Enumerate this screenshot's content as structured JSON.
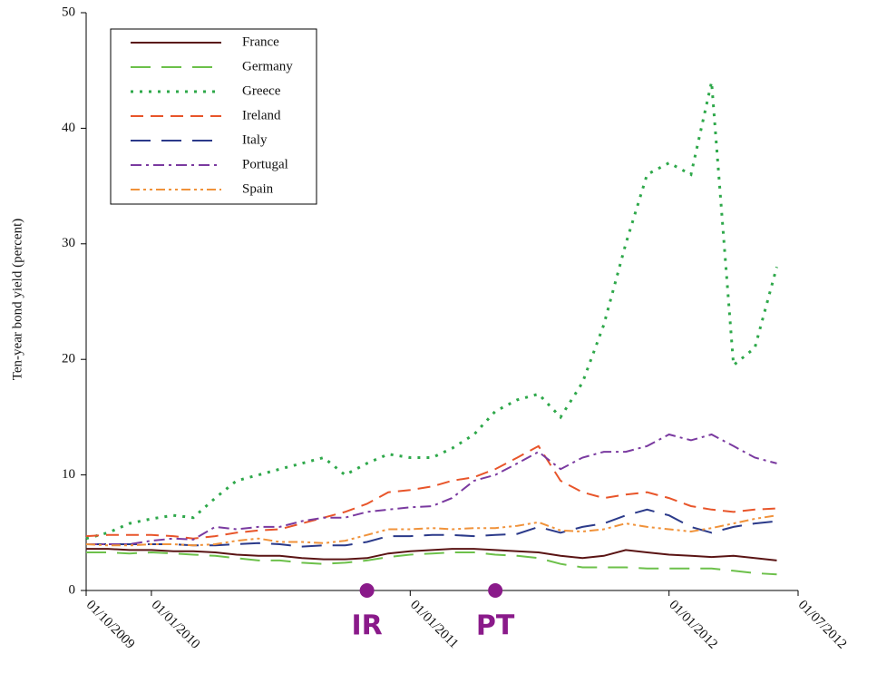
{
  "chart_data": {
    "type": "line",
    "y_label": "Ten-year bond yield (percent)",
    "x": [
      "2009-10-01",
      "2009-11-01",
      "2009-12-01",
      "2010-01-01",
      "2010-02-01",
      "2010-03-01",
      "2010-04-01",
      "2010-05-01",
      "2010-06-01",
      "2010-07-01",
      "2010-08-01",
      "2010-09-01",
      "2010-10-01",
      "2010-11-01",
      "2010-12-01",
      "2011-01-01",
      "2011-02-01",
      "2011-03-01",
      "2011-04-01",
      "2011-05-01",
      "2011-06-01",
      "2011-07-01",
      "2011-08-01",
      "2011-09-01",
      "2011-10-01",
      "2011-11-01",
      "2011-12-01",
      "2012-01-01",
      "2012-02-01",
      "2012-03-01",
      "2012-04-01",
      "2012-05-01",
      "2012-06-01"
    ],
    "xlim": [
      "2009-10-01",
      "2012-07-01"
    ],
    "xticks": [
      {
        "value": "2009-10-01",
        "label": "01/10/2009"
      },
      {
        "value": "2010-01-01",
        "label": "01/01/2010"
      },
      {
        "value": "2011-01-01",
        "label": "01/01/2011"
      },
      {
        "value": "2012-01-01",
        "label": "01/01/2012"
      },
      {
        "value": "2012-07-01",
        "label": "01/07/2012"
      }
    ],
    "ylim": [
      0,
      50
    ],
    "yticks": [
      0,
      10,
      20,
      30,
      40,
      50
    ],
    "legend": "top-left",
    "series": [
      {
        "name": "France",
        "color": "#5a1414",
        "dash": "solid",
        "values": [
          3.6,
          3.6,
          3.5,
          3.5,
          3.4,
          3.4,
          3.3,
          3.1,
          3.0,
          3.0,
          2.8,
          2.7,
          2.7,
          2.8,
          3.2,
          3.4,
          3.5,
          3.6,
          3.6,
          3.5,
          3.4,
          3.3,
          3.0,
          2.8,
          3.0,
          3.5,
          3.3,
          3.1,
          3.0,
          2.9,
          3.0,
          2.8,
          2.6
        ]
      },
      {
        "name": "Germany",
        "color": "#6cc04a",
        "dash": "long-dash",
        "values": [
          3.3,
          3.3,
          3.2,
          3.3,
          3.2,
          3.1,
          3.0,
          2.8,
          2.6,
          2.6,
          2.4,
          2.3,
          2.4,
          2.6,
          2.9,
          3.1,
          3.2,
          3.3,
          3.3,
          3.1,
          3.0,
          2.8,
          2.3,
          2.0,
          2.0,
          2.0,
          1.9,
          1.9,
          1.9,
          1.9,
          1.7,
          1.5,
          1.4
        ]
      },
      {
        "name": "Greece",
        "color": "#2ea84a",
        "dash": "dotted",
        "values": [
          4.5,
          5,
          5.8,
          6.2,
          6.5,
          6.3,
          8,
          9.5,
          10,
          10.5,
          11,
          11.5,
          10,
          11,
          11.8,
          11.5,
          11.5,
          12.3,
          13.5,
          15.5,
          16.5,
          17,
          15,
          18,
          23,
          30,
          36,
          37,
          36,
          44,
          19.5,
          21,
          28
        ]
      },
      {
        "name": "Ireland",
        "color": "#e8552a",
        "dash": "dashed",
        "values": [
          4.7,
          4.8,
          4.8,
          4.8,
          4.7,
          4.5,
          4.7,
          5.0,
          5.2,
          5.3,
          5.8,
          6.3,
          6.8,
          7.5,
          8.5,
          8.7,
          9.0,
          9.5,
          9.8,
          10.5,
          11.5,
          12.5,
          9.5,
          8.5,
          8.0,
          8.3,
          8.5,
          8.0,
          7.3,
          7.0,
          6.8,
          7.0,
          7.1
        ]
      },
      {
        "name": "Italy",
        "color": "#2b3a8a",
        "dash": "long-dash",
        "values": [
          4.0,
          4.0,
          4.0,
          4.0,
          4.0,
          3.9,
          3.9,
          4.0,
          4.1,
          4.0,
          3.8,
          3.9,
          3.9,
          4.2,
          4.7,
          4.7,
          4.8,
          4.8,
          4.7,
          4.8,
          4.9,
          5.5,
          5.0,
          5.5,
          5.8,
          6.5,
          7.0,
          6.5,
          5.5,
          5.0,
          5.5,
          5.8,
          6.0
        ]
      },
      {
        "name": "Portugal",
        "color": "#7a3aa0",
        "dash": "dash-dot",
        "values": [
          4.0,
          4.0,
          4.0,
          4.3,
          4.5,
          4.4,
          5.5,
          5.3,
          5.5,
          5.5,
          6.0,
          6.3,
          6.3,
          6.8,
          7.0,
          7.2,
          7.3,
          8.0,
          9.5,
          10.0,
          11.0,
          12.0,
          10.5,
          11.5,
          12.0,
          12.0,
          12.5,
          13.5,
          13.0,
          13.5,
          12.5,
          11.5,
          11.0
        ]
      },
      {
        "name": "Spain",
        "color": "#f0923a",
        "dash": "dash-dot-dot",
        "values": [
          4.0,
          3.9,
          3.9,
          4.0,
          4.0,
          3.9,
          4.0,
          4.3,
          4.5,
          4.2,
          4.2,
          4.1,
          4.3,
          4.8,
          5.3,
          5.3,
          5.4,
          5.3,
          5.4,
          5.4,
          5.6,
          5.9,
          5.2,
          5.1,
          5.3,
          5.8,
          5.5,
          5.3,
          5.1,
          5.4,
          5.8,
          6.2,
          6.5
        ]
      }
    ],
    "annotations": [
      {
        "x": "2010-11-01",
        "label": "IR"
      },
      {
        "x": "2011-05-01",
        "label": "PT"
      }
    ]
  }
}
